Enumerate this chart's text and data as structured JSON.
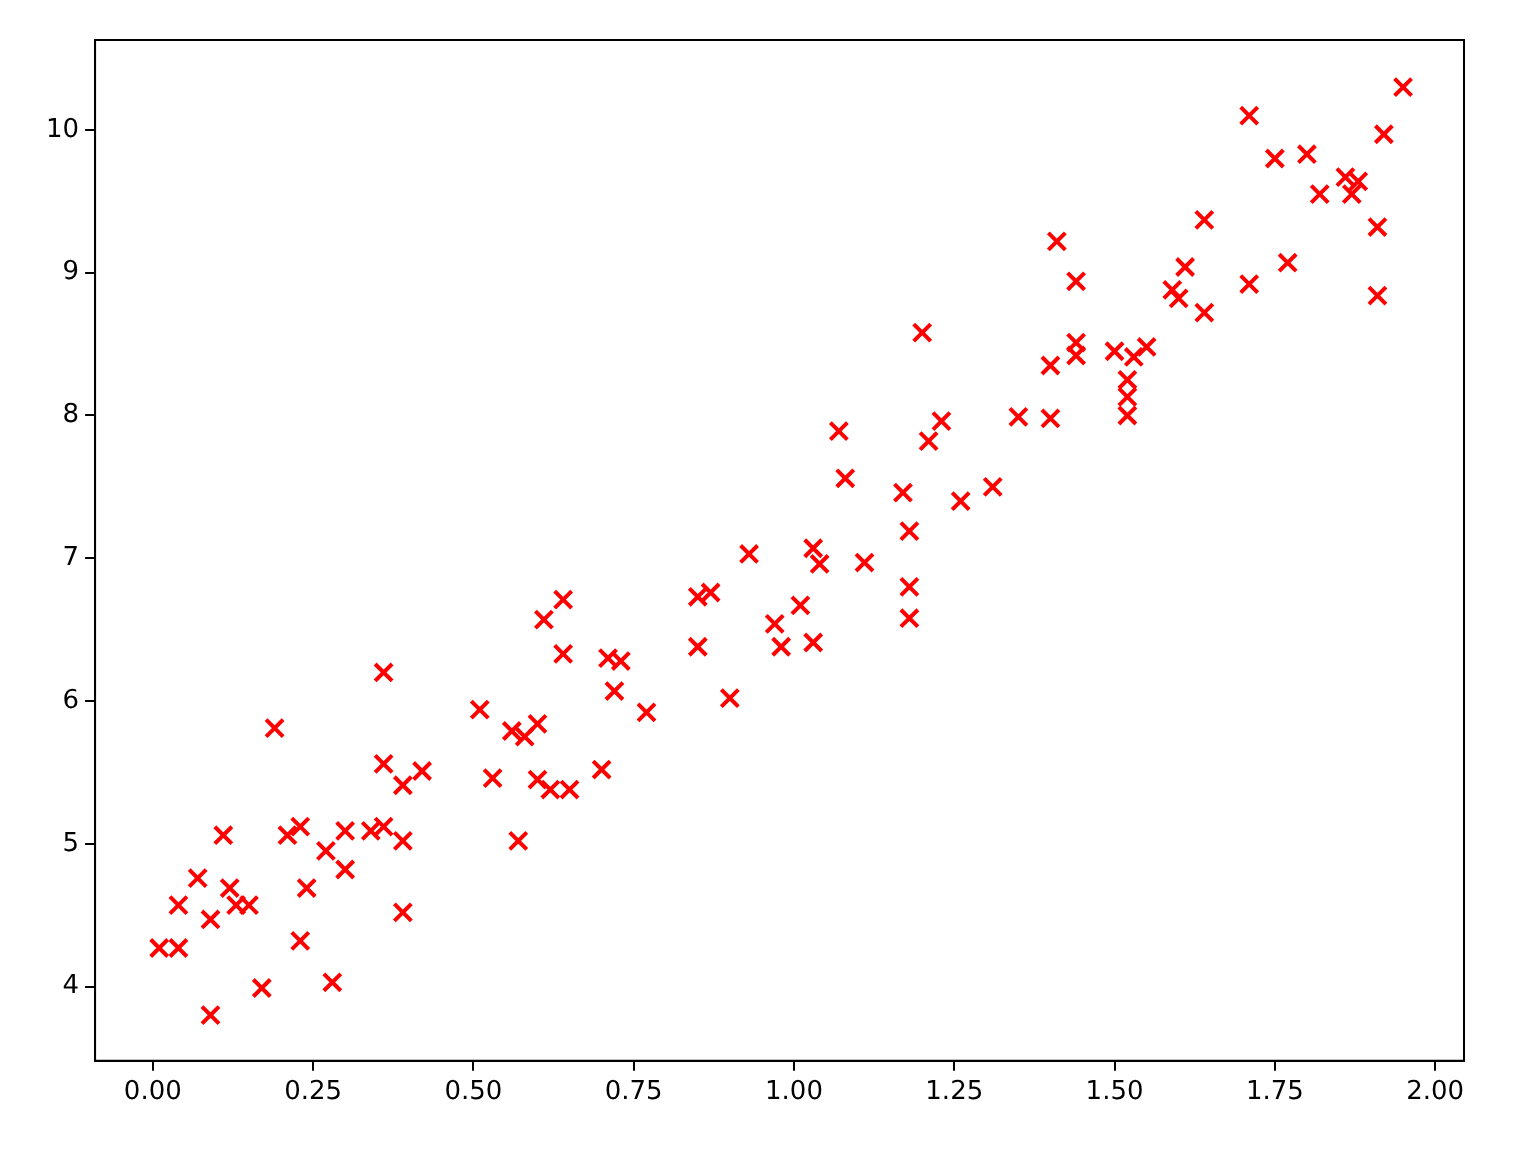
{
  "chart_data": {
    "type": "scatter",
    "marker": "cross",
    "grid": false,
    "legend": false,
    "xlim": [
      -0.09,
      2.045
    ],
    "ylim": [
      3.48,
      10.63
    ],
    "xticks": [
      {
        "value": 0,
        "label": "0.00"
      },
      {
        "value": 0.25,
        "label": "0.25"
      },
      {
        "value": 0.5,
        "label": "0.50"
      },
      {
        "value": 0.75,
        "label": "0.75"
      },
      {
        "value": 1,
        "label": "1.00"
      },
      {
        "value": 1.25,
        "label": "1.25"
      },
      {
        "value": 1.5,
        "label": "1.50"
      },
      {
        "value": 1.75,
        "label": "1.75"
      },
      {
        "value": 2,
        "label": "2.00"
      }
    ],
    "yticks": [
      4,
      5,
      6,
      7,
      8,
      9,
      10
    ],
    "series": [
      {
        "color": "#ff0000",
        "x": [
          0.01,
          0.04,
          0.04,
          0.07,
          0.09,
          0.09,
          0.11,
          0.12,
          0.13,
          0.15,
          0.17,
          0.19,
          0.21,
          0.23,
          0.23,
          0.24,
          0.27,
          0.28,
          0.3,
          0.3,
          0.34,
          0.36,
          0.36,
          0.36,
          0.39,
          0.39,
          0.39,
          0.42,
          0.51,
          0.53,
          0.56,
          0.58,
          0.57,
          0.6,
          0.6,
          0.62,
          0.61,
          0.64,
          0.64,
          0.65,
          0.71,
          0.7,
          0.73,
          0.72,
          0.77,
          0.85,
          0.87,
          0.85,
          0.9,
          0.93,
          0.97,
          0.98,
          1.01,
          1.03,
          1.03,
          1.04,
          1.07,
          1.08,
          1.11,
          1.17,
          1.18,
          1.18,
          1.18,
          1.2,
          1.21,
          1.23,
          1.26,
          1.31,
          1.35,
          1.4,
          1.4,
          1.41,
          1.44,
          1.44,
          1.44,
          1.5,
          1.53,
          1.52,
          1.52,
          1.52,
          1.55,
          1.59,
          1.6,
          1.61,
          1.64,
          1.64,
          1.71,
          1.71,
          1.75,
          1.77,
          1.8,
          1.82,
          1.86,
          1.88,
          1.87,
          1.91,
          1.91,
          1.92,
          1.95
        ],
        "values": [
          4.27,
          4.27,
          4.57,
          4.76,
          4.47,
          3.8,
          5.06,
          4.69,
          4.57,
          4.57,
          3.99,
          5.81,
          5.06,
          5.12,
          4.32,
          4.69,
          4.95,
          4.03,
          5.09,
          4.82,
          5.09,
          5.12,
          5.56,
          6.2,
          5.41,
          5.02,
          4.52,
          5.51,
          5.94,
          5.46,
          5.79,
          5.75,
          5.02,
          5.84,
          5.45,
          5.38,
          6.57,
          6.71,
          6.33,
          5.38,
          6.3,
          5.52,
          6.28,
          6.07,
          5.92,
          6.73,
          6.76,
          6.38,
          6.02,
          7.03,
          6.54,
          6.38,
          6.67,
          6.41,
          7.07,
          6.96,
          7.89,
          7.56,
          6.97,
          7.46,
          7.19,
          6.8,
          6.58,
          8.58,
          7.82,
          7.96,
          7.4,
          7.5,
          7.99,
          7.98,
          8.35,
          9.22,
          8.94,
          8.51,
          8.42,
          8.45,
          8.41,
          8.25,
          8.13,
          8,
          8.48,
          8.88,
          8.82,
          9.04,
          9.37,
          8.72,
          10.1,
          8.92,
          9.8,
          9.07,
          9.83,
          9.55,
          9.67,
          9.64,
          9.55,
          8.84,
          9.32,
          9.97,
          10.3
        ]
      }
    ]
  }
}
